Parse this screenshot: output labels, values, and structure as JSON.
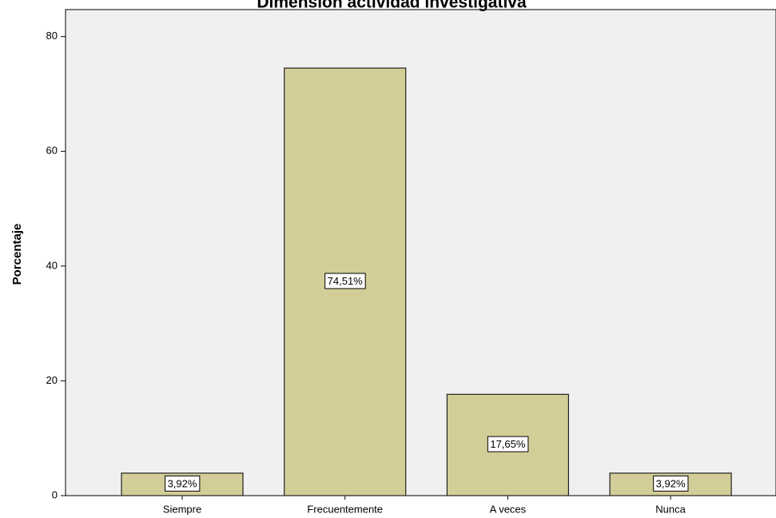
{
  "chart_data": {
    "type": "bar",
    "title": "Dimensión actividad investigativa",
    "y_label": "Porcentaje",
    "categories": [
      "Siempre",
      "Frecuentemente",
      "A veces",
      "Nunca"
    ],
    "values": [
      3.92,
      74.51,
      17.65,
      3.92
    ],
    "value_labels": [
      "3,92%",
      "74,51%",
      "17,65%",
      "3,92%"
    ],
    "color": "#d3ce98",
    "ylim": [
      0,
      84.7
    ],
    "yticks": [
      0,
      20,
      40,
      60,
      80
    ]
  }
}
